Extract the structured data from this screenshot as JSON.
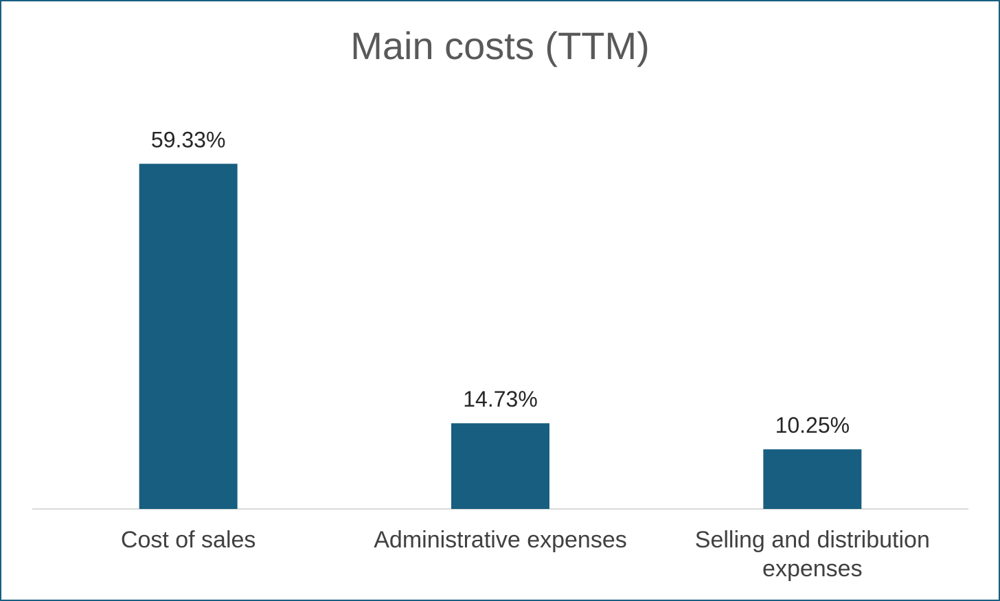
{
  "chart_data": {
    "type": "bar",
    "title": "Main costs  (TTM)",
    "xlabel": "",
    "ylabel": "",
    "categories": [
      [
        "Cost of sales"
      ],
      [
        "Administrative expenses"
      ],
      [
        "Selling and distribution",
        "expenses"
      ]
    ],
    "values": [
      59.33,
      14.73,
      10.25
    ],
    "value_labels": [
      "59.33%",
      "14.73%",
      "10.25%"
    ],
    "value_unit": "%",
    "ylim": [
      0,
      68
    ],
    "grid": false,
    "legend": "none",
    "bar_color": "#175e80",
    "axis_color": "#d9d9d9"
  }
}
